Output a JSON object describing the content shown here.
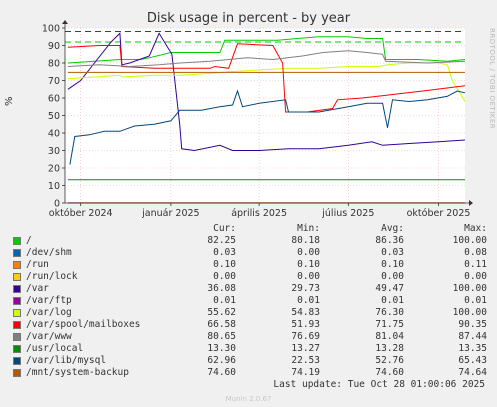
{
  "chart_data": {
    "type": "line",
    "title": "Disk usage in percent - by year",
    "ylabel": "%",
    "ylim": [
      0,
      100
    ],
    "yticks": [
      0,
      10,
      20,
      30,
      40,
      50,
      60,
      70,
      80,
      90,
      100
    ],
    "xlim": [
      "2024-09-15",
      "2025-10-28"
    ],
    "xticks": [
      {
        "label": "október 2024",
        "date": "2024-10-01"
      },
      {
        "label": "január 2025",
        "date": "2025-01-01"
      },
      {
        "label": "április 2025",
        "date": "2025-04-01"
      },
      {
        "label": "július 2025",
        "date": "2025-07-01"
      },
      {
        "label": "október 2025",
        "date": "2025-10-01"
      }
    ],
    "grid": true,
    "thresholds": [
      {
        "value": 92,
        "color": "#00cc00",
        "style": "dashed"
      },
      {
        "value": 98,
        "color": "#1f3fa0",
        "style": "dashed"
      }
    ],
    "series": [
      {
        "name": "/",
        "color": "#00cc00",
        "cur": "82.25",
        "min": "80.18",
        "avg": "86.36",
        "max": "100.00",
        "points": [
          [
            "2024-09-18",
            80
          ],
          [
            "2024-10-15",
            81
          ],
          [
            "2024-11-10",
            82
          ],
          [
            "2024-12-01",
            82
          ],
          [
            "2024-12-10",
            83
          ],
          [
            "2025-01-01",
            86
          ],
          [
            "2025-01-20",
            86
          ],
          [
            "2025-02-20",
            86
          ],
          [
            "2025-02-25",
            93
          ],
          [
            "2025-04-20",
            93
          ],
          [
            "2025-05-10",
            94
          ],
          [
            "2025-06-01",
            95
          ],
          [
            "2025-07-01",
            95
          ],
          [
            "2025-07-20",
            94
          ],
          [
            "2025-08-05",
            94
          ],
          [
            "2025-08-08",
            82
          ],
          [
            "2025-09-10",
            82
          ],
          [
            "2025-10-10",
            81
          ],
          [
            "2025-10-28",
            82
          ]
        ]
      },
      {
        "name": "/dev/shm",
        "color": "#0066b3",
        "cur": "0.03",
        "min": "0.00",
        "avg": "0.03",
        "max": "0.08",
        "points": [
          [
            "2024-09-18",
            0
          ],
          [
            "2025-10-28",
            0
          ]
        ]
      },
      {
        "name": "/run",
        "color": "#ff8000",
        "cur": "0.10",
        "min": "0.10",
        "avg": "0.10",
        "max": "0.11",
        "points": [
          [
            "2024-09-18",
            0.1
          ],
          [
            "2025-10-28",
            0.1
          ]
        ]
      },
      {
        "name": "/run/lock",
        "color": "#ffcc00",
        "cur": "0.00",
        "min": "0.00",
        "avg": "0.00",
        "max": "0.00",
        "points": [
          [
            "2024-09-18",
            0
          ],
          [
            "2025-10-28",
            0
          ]
        ]
      },
      {
        "name": "/var",
        "color": "#330099",
        "cur": "36.08",
        "min": "29.73",
        "avg": "49.47",
        "max": "100.00",
        "points": [
          [
            "2024-09-18",
            65
          ],
          [
            "2024-10-01",
            70
          ],
          [
            "2024-10-15",
            80
          ],
          [
            "2024-11-01",
            92
          ],
          [
            "2024-11-10",
            97
          ],
          [
            "2024-11-12",
            79
          ],
          [
            "2024-11-20",
            80
          ],
          [
            "2024-12-10",
            84
          ],
          [
            "2024-12-20",
            97
          ],
          [
            "2025-01-02",
            85
          ],
          [
            "2025-01-10",
            45
          ],
          [
            "2025-01-12",
            31
          ],
          [
            "2025-01-25",
            30
          ],
          [
            "2025-02-20",
            33
          ],
          [
            "2025-03-05",
            30
          ],
          [
            "2025-04-01",
            30
          ],
          [
            "2025-05-01",
            31
          ],
          [
            "2025-06-01",
            31
          ],
          [
            "2025-07-01",
            33
          ],
          [
            "2025-07-25",
            35
          ],
          [
            "2025-08-05",
            33
          ],
          [
            "2025-09-01",
            34
          ],
          [
            "2025-10-01",
            35
          ],
          [
            "2025-10-28",
            36
          ]
        ]
      },
      {
        "name": "/var/ftp",
        "color": "#990099",
        "cur": "0.01",
        "min": "0.01",
        "avg": "0.01",
        "max": "0.01",
        "points": [
          [
            "2024-09-18",
            0
          ],
          [
            "2025-10-28",
            0
          ]
        ]
      },
      {
        "name": "/var/log",
        "color": "#ccff00",
        "cur": "55.62",
        "min": "54.83",
        "avg": "76.30",
        "max": "100.00",
        "points": [
          [
            "2024-09-18",
            71
          ],
          [
            "2024-10-15",
            72
          ],
          [
            "2024-11-10",
            73
          ],
          [
            "2024-11-12",
            72
          ],
          [
            "2024-12-15",
            73
          ],
          [
            "2025-01-10",
            73
          ],
          [
            "2025-02-10",
            74
          ],
          [
            "2025-03-01",
            75
          ],
          [
            "2025-04-01",
            76
          ],
          [
            "2025-05-01",
            77
          ],
          [
            "2025-06-01",
            77
          ],
          [
            "2025-07-01",
            78
          ],
          [
            "2025-08-01",
            78
          ],
          [
            "2025-08-10",
            79
          ],
          [
            "2025-09-01",
            80
          ],
          [
            "2025-10-01",
            80
          ],
          [
            "2025-10-10",
            79
          ],
          [
            "2025-10-15",
            70
          ],
          [
            "2025-10-28",
            58
          ]
        ]
      },
      {
        "name": "/var/spool/mailboxes",
        "color": "#ff0000",
        "cur": "66.58",
        "min": "51.93",
        "avg": "71.75",
        "max": "90.35",
        "points": [
          [
            "2024-09-18",
            89
          ],
          [
            "2024-10-20",
            90
          ],
          [
            "2024-11-10",
            90
          ],
          [
            "2024-11-12",
            78
          ],
          [
            "2024-12-15",
            77
          ],
          [
            "2025-01-15",
            77
          ],
          [
            "2025-02-10",
            77
          ],
          [
            "2025-02-15",
            78
          ],
          [
            "2025-03-01",
            77
          ],
          [
            "2025-03-10",
            91
          ],
          [
            "2025-04-15",
            90
          ],
          [
            "2025-04-25",
            80
          ],
          [
            "2025-04-28",
            52
          ],
          [
            "2025-05-20",
            52
          ],
          [
            "2025-06-15",
            54
          ],
          [
            "2025-06-20",
            59
          ],
          [
            "2025-07-15",
            60
          ],
          [
            "2025-08-15",
            62
          ],
          [
            "2025-09-15",
            64
          ],
          [
            "2025-10-28",
            67
          ]
        ]
      },
      {
        "name": "/var/www",
        "color": "#808080",
        "cur": "80.65",
        "min": "76.69",
        "avg": "81.04",
        "max": "87.44",
        "points": [
          [
            "2024-09-18",
            78
          ],
          [
            "2024-10-20",
            79
          ],
          [
            "2024-11-20",
            78
          ],
          [
            "2024-12-20",
            79
          ],
          [
            "2025-01-10",
            80
          ],
          [
            "2025-02-10",
            81
          ],
          [
            "2025-03-01",
            82
          ],
          [
            "2025-03-20",
            83
          ],
          [
            "2025-04-15",
            82
          ],
          [
            "2025-05-15",
            84
          ],
          [
            "2025-06-05",
            86
          ],
          [
            "2025-07-01",
            87
          ],
          [
            "2025-07-20",
            86
          ],
          [
            "2025-08-05",
            85
          ],
          [
            "2025-08-08",
            81
          ],
          [
            "2025-09-20",
            80
          ],
          [
            "2025-10-28",
            81
          ]
        ]
      },
      {
        "name": "/usr/local",
        "color": "#008f00",
        "cur": "13.30",
        "min": "13.27",
        "avg": "13.28",
        "max": "13.35",
        "points": [
          [
            "2024-09-18",
            13.3
          ],
          [
            "2025-10-28",
            13.3
          ]
        ]
      },
      {
        "name": "/var/lib/mysql",
        "color": "#00487d",
        "cur": "62.96",
        "min": "22.53",
        "avg": "52.76",
        "max": "65.43",
        "points": [
          [
            "2024-09-20",
            22
          ],
          [
            "2024-09-25",
            38
          ],
          [
            "2024-10-10",
            39
          ],
          [
            "2024-10-25",
            41
          ],
          [
            "2024-11-10",
            41
          ],
          [
            "2024-11-25",
            44
          ],
          [
            "2024-12-15",
            45
          ],
          [
            "2025-01-01",
            47
          ],
          [
            "2025-01-10",
            53
          ],
          [
            "2025-02-01",
            53
          ],
          [
            "2025-02-20",
            55
          ],
          [
            "2025-03-05",
            56
          ],
          [
            "2025-03-10",
            64
          ],
          [
            "2025-03-15",
            55
          ],
          [
            "2025-04-01",
            57
          ],
          [
            "2025-04-28",
            59
          ],
          [
            "2025-05-01",
            52
          ],
          [
            "2025-06-01",
            52
          ],
          [
            "2025-07-01",
            55
          ],
          [
            "2025-07-20",
            57
          ],
          [
            "2025-08-05",
            57
          ],
          [
            "2025-08-10",
            43
          ],
          [
            "2025-08-15",
            59
          ],
          [
            "2025-09-01",
            58
          ],
          [
            "2025-09-20",
            59
          ],
          [
            "2025-10-10",
            61
          ],
          [
            "2025-10-20",
            64
          ],
          [
            "2025-10-28",
            63
          ]
        ]
      },
      {
        "name": "/mnt/system-backup",
        "color": "#b35a00",
        "cur": "74.60",
        "min": "74.19",
        "avg": "74.60",
        "max": "74.64",
        "points": [
          [
            "2024-09-18",
            74.6
          ],
          [
            "2025-10-28",
            74.6
          ]
        ]
      }
    ]
  },
  "legend_headers": {
    "cur": "Cur:",
    "min": "Min:",
    "avg": "Avg:",
    "max": "Max:"
  },
  "last_update": "Last update: Tue Oct 28 01:00:06 2025",
  "side_label": "RRDTOOL / TOBI OETIKER",
  "footer": "Munin 2.0.67"
}
